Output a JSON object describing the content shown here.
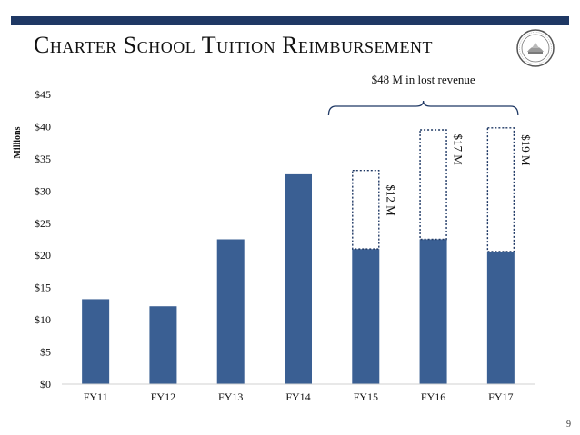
{
  "slide": {
    "title": "Charter School Tuition Reimbursement",
    "page_number": "9",
    "bar_color": "#3a5f93",
    "brand_color": "#1f3864"
  },
  "chart_data": {
    "type": "bar",
    "title": "Charter School Tuition Reimbursement",
    "ylabel": "Millions",
    "xlabel": "",
    "ylim": [
      0,
      45
    ],
    "ytick_labels": [
      "$0",
      "$5",
      "$10",
      "$15",
      "$20",
      "$25",
      "$30",
      "$35",
      "$40",
      "$45"
    ],
    "ytick_values": [
      0,
      5,
      10,
      15,
      20,
      25,
      30,
      35,
      40,
      45
    ],
    "categories": [
      "FY11",
      "FY12",
      "FY13",
      "FY14",
      "FY15",
      "FY16",
      "FY17"
    ],
    "series": [
      {
        "values": [
          13.2,
          12.1,
          22.5,
          32.6,
          21.0,
          22.5,
          20.6
        ]
      },
      {
        "values": [
          0,
          0,
          0,
          0,
          12.2,
          17.0,
          19.2
        ]
      }
    ],
    "gap_labels": [
      "",
      "",
      "",
      "",
      "$12 M",
      "$17 M",
      "$19 M"
    ],
    "annotation": "$48 M in lost revenue",
    "grid": false,
    "legend": "none"
  }
}
